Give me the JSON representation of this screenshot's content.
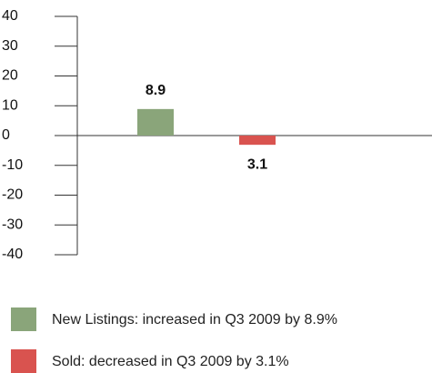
{
  "chart_data": {
    "type": "bar",
    "categories": [
      null,
      null
    ],
    "series": [
      {
        "name": "New Listings: increased in Q3 2009 by 8.9%",
        "color": "#8aa57a",
        "values": [
          8.9,
          null
        ],
        "value_labels": [
          "8.9",
          null
        ]
      },
      {
        "name": "Sold: decreased in Q3 2009 by 3.1%",
        "color": "#d9534f",
        "values": [
          null,
          -3.1
        ],
        "value_labels": [
          null,
          "3.1"
        ]
      }
    ],
    "ylim": [
      -40,
      40
    ],
    "yticks": [
      -40,
      -30,
      -20,
      -10,
      0,
      10,
      20,
      30,
      40
    ]
  }
}
